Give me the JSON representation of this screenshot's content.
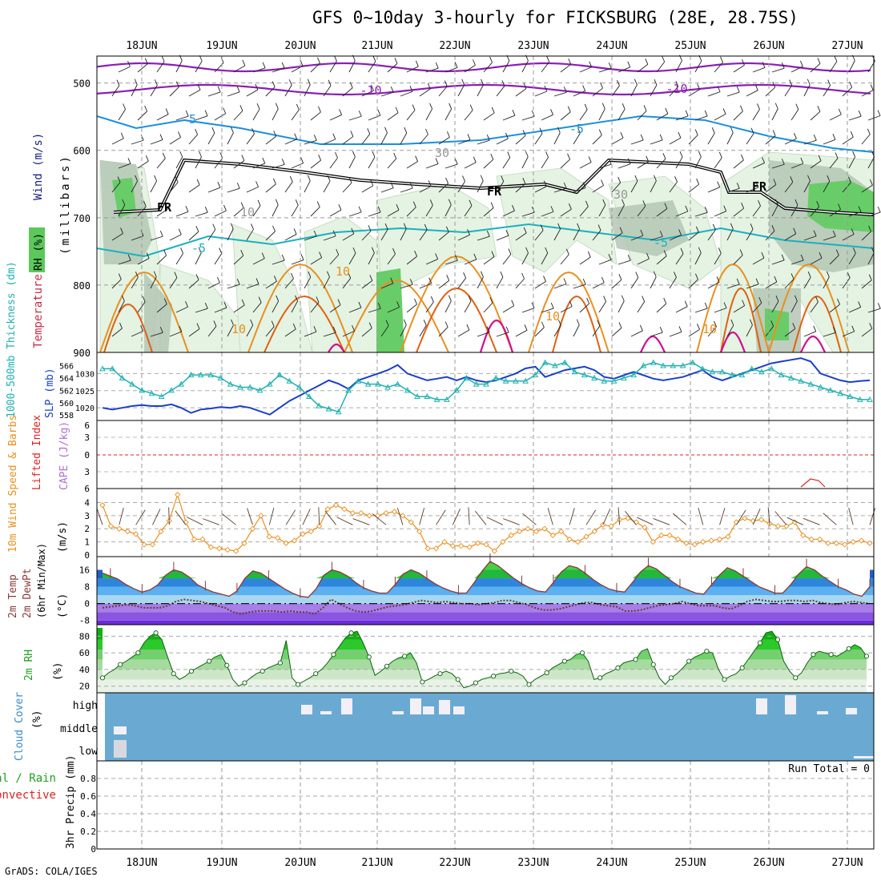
{
  "title": "GFS 0~10day 3-hourly for FICKSBURG (28E, 28.75S)",
  "credit": "GrADS: COLA/IGES",
  "colors": {
    "purple": "#8a1fb5",
    "blue": "#1a8fe0",
    "cyan": "#1ab0c0",
    "orange": "#e89020",
    "darkorange": "#e06010",
    "magenta": "#d0108a",
    "slp": "#1a3fc8",
    "thick": "#20b0b0",
    "wind": "#e89020",
    "rh": "#22bb22",
    "cloud": "#6aaad2",
    "lifted": "#e02020"
  },
  "chart_data": {
    "type": "meteogram",
    "x_dates": [
      "18JUN",
      "19JUN",
      "20JUN",
      "21JUN",
      "22JUN",
      "23JUN",
      "24JUN",
      "25JUN",
      "26JUN",
      "27JUN"
    ],
    "panels": {
      "upper": {
        "ylabel": "(millibars)",
        "left_labels": [
          "RH (%)",
          "Temperature (°C)",
          "Wind (m/s)"
        ],
        "yticks": [
          500,
          600,
          700,
          800,
          900
        ],
        "contour_labels": [
          "-10",
          "-10",
          "-5",
          "-5",
          "-5",
          "-5",
          "10",
          "10",
          "10",
          "10",
          "FR",
          "FR",
          "FR",
          "30",
          "30",
          "10"
        ]
      },
      "slp_thickness": {
        "left_labels": [
          "1000-500mb Thickness (dm)",
          "SLP (mb)"
        ],
        "thickness_ticks": [
          558,
          560,
          562,
          564,
          566
        ],
        "slp_ticks": [
          1020,
          1025,
          1030
        ],
        "slp": [
          1020,
          1019.5,
          1020,
          1020.5,
          1020.8,
          1020.5,
          1020.5,
          1021,
          1020,
          1018.5,
          1019.5,
          1019.8,
          1020.2,
          1020,
          1020.5,
          1020,
          1019,
          1018,
          1020,
          1022,
          1023.5,
          1025,
          1026.5,
          1028,
          1027,
          1025.5,
          1028,
          1029,
          1030,
          1031,
          1032.5,
          1030,
          1029,
          1028,
          1028.5,
          1029,
          1028,
          1029,
          1028,
          1027.5,
          1028,
          1029,
          1030,
          1031.5,
          1032,
          1029,
          1030,
          1031,
          1031.5,
          1032,
          1031,
          1029,
          1028.5,
          1029.5,
          1030.5,
          1029.5,
          1028.5,
          1028,
          1028.5,
          1029,
          1030,
          1031,
          1029,
          1028,
          1029,
          1030,
          1031,
          1032,
          1033,
          1033.5,
          1034,
          1034.5,
          1033.5,
          1030,
          1029,
          1028,
          1027.5,
          1027.8,
          1028
        ],
        "thickness": [
          565.5,
          565.5,
          564,
          563,
          562,
          561.5,
          561,
          562,
          563,
          564.5,
          564.5,
          564.5,
          564,
          563,
          562.5,
          562.5,
          562,
          563,
          564.5,
          563.5,
          562.5,
          561,
          559.5,
          559,
          558.5,
          562,
          563.5,
          563,
          563,
          562.5,
          563,
          562,
          561,
          561,
          560.5,
          560.5,
          562,
          564,
          563,
          563,
          564,
          563.5,
          563.5,
          563.5,
          564.5,
          566.5,
          566,
          566.5,
          565,
          564.5,
          564,
          563.5,
          563.5,
          564,
          564.5,
          566,
          566.5,
          566,
          566,
          566,
          566.5,
          565.5,
          565,
          565,
          564.5,
          564.5,
          565.5,
          565,
          565.5,
          564.5,
          564,
          563.5,
          563,
          562.5,
          562,
          561.5,
          561,
          560.5,
          560.5
        ]
      },
      "cape_li": {
        "left_labels": [
          "Lifted Index",
          "CAPE (J/kg)"
        ],
        "yticks": [
          -3,
          0,
          3,
          6
        ],
        "tick_labels": [
          "6",
          "3",
          "0",
          "3",
          "6"
        ]
      },
      "wind10m": {
        "left_labels": [
          "10m Wind Speed & Barbs",
          "(m/s)"
        ],
        "yticks": [
          0,
          1,
          2,
          3,
          4
        ],
        "speed": [
          3.8,
          2.2,
          2,
          1.8,
          1.6,
          0.8,
          0.8,
          1.8,
          2.6,
          4.6,
          2.5,
          1.2,
          1.2,
          0.6,
          0.5,
          0.4,
          0.3,
          0.9,
          2,
          3,
          1.4,
          1.3,
          0.9,
          1.1,
          1.6,
          1.8,
          2.2,
          3.5,
          3.8,
          3.5,
          3.2,
          3.2,
          3,
          3,
          3.2,
          3.3,
          3,
          2.5,
          1.8,
          0.5,
          0.5,
          1,
          0.7,
          0.7,
          0.6,
          0.9,
          0.8,
          0.3,
          1,
          1.5,
          1.8,
          2,
          1.8,
          2,
          1.5,
          1.8,
          1.2,
          1,
          1.4,
          1.8,
          2.3,
          2.2,
          2.7,
          2.8,
          2.5,
          2.1,
          1,
          1.5,
          1.5,
          1.2,
          0.9,
          0.8,
          1,
          1.1,
          1.2,
          1.4,
          2.5,
          2.8,
          2.6,
          2.7,
          2.4,
          2.2,
          2.2,
          2.5,
          1.5,
          1.2,
          1.2,
          0.9,
          0.9,
          0.8,
          1,
          1.1,
          0.9
        ]
      },
      "temp": {
        "left_labels": [
          "2m Temp",
          "2m DewPt",
          "(6hr Min/Max)",
          "(°C)"
        ],
        "yticks": [
          -8,
          0,
          8,
          16
        ],
        "tick_labels": [
          "-8",
          "0",
          "8",
          "16"
        ],
        "temp": [
          14.5,
          13,
          11.5,
          9,
          7,
          5.5,
          6.5,
          9,
          13.5,
          16,
          15,
          12.5,
          9,
          7,
          5.5,
          4.5,
          3.5,
          6,
          12,
          15.5,
          14.5,
          12,
          9.5,
          7,
          5,
          3.5,
          3,
          7,
          13.5,
          16,
          15,
          13,
          10,
          7.5,
          6,
          5,
          5,
          9,
          14,
          16,
          14.5,
          12,
          9.5,
          7.5,
          6,
          5,
          5,
          10,
          15.5,
          20,
          18,
          15,
          12,
          9.5,
          7.5,
          6,
          5.5,
          10,
          15,
          18,
          17,
          14.5,
          11.5,
          9,
          7,
          6,
          5.5,
          10,
          15,
          18,
          16.5,
          13.5,
          10.5,
          8,
          6.5,
          5,
          4.5,
          9,
          13.5,
          17,
          15.5,
          13,
          10.5,
          8,
          6.5,
          5,
          5,
          9,
          14,
          17.5,
          16,
          13,
          10.5,
          8,
          6.5,
          4.5,
          3.5,
          8
        ],
        "dewpt": [
          -2,
          -1.5,
          -1,
          -0.5,
          -1,
          -2,
          -2,
          -2,
          -1,
          1,
          2,
          1.5,
          1,
          0,
          -1,
          -2,
          -4,
          -5,
          -4,
          -3.5,
          -3.5,
          -3.5,
          -4,
          -3.5,
          -4,
          -4,
          -5,
          -2,
          2,
          0,
          -2,
          -3.5,
          -4,
          -3.5,
          -2.5,
          -1.5,
          -1,
          -0.5,
          0.5,
          1.5,
          1,
          0.5,
          1,
          0.5,
          0,
          0,
          -0.5,
          0,
          0.5,
          1.5,
          1.5,
          0.5,
          -0.5,
          -2,
          -3,
          -3,
          -2.5,
          -1.5,
          -0.5,
          0.5,
          0.5,
          -0.5,
          -1,
          -1.5,
          -3.5,
          -3.5,
          -3,
          -2,
          -1,
          -0.5,
          0,
          1,
          0,
          -1,
          -1,
          -1,
          -2,
          -2.5,
          -1,
          1,
          2,
          1.5,
          1,
          1,
          1.5,
          1.5,
          1,
          1.5,
          0.5,
          0,
          -0.5,
          0.5,
          1,
          0.5,
          0
        ]
      },
      "rh2m": {
        "left_labels": [
          "2m RH",
          "(%)"
        ],
        "yticks": [
          20,
          40,
          60,
          80
        ],
        "values": [
          30,
          36,
          40,
          46,
          50,
          55,
          60,
          72,
          80,
          84,
          76,
          55,
          35,
          28,
          32,
          38,
          42,
          46,
          50,
          55,
          58,
          45,
          28,
          20,
          24,
          30,
          35,
          38,
          42,
          45,
          48,
          75,
          30,
          22,
          26,
          30,
          35,
          40,
          48,
          58,
          68,
          78,
          84,
          86,
          72,
          55,
          33,
          38,
          44,
          50,
          54,
          56,
          60,
          48,
          25,
          28,
          32,
          35,
          38,
          35,
          28,
          18,
          20,
          24,
          28,
          30,
          32,
          35,
          36,
          38,
          36,
          32,
          22,
          28,
          32,
          36,
          42,
          46,
          50,
          52,
          58,
          60,
          50,
          28,
          30,
          35,
          38,
          42,
          48,
          50,
          52,
          62,
          65,
          46,
          30,
          22,
          30,
          35,
          42,
          50,
          55,
          58,
          62,
          60,
          40,
          28,
          32,
          35,
          42,
          52,
          62,
          72,
          84,
          86,
          76,
          50,
          38,
          30,
          36,
          48,
          58,
          62,
          60,
          58,
          56,
          60,
          65,
          70,
          66,
          56
        ]
      },
      "cloud": {
        "left_labels": [
          "Cloud Cover",
          "(%)"
        ],
        "level_labels": [
          "high",
          "middle",
          "low"
        ]
      },
      "precip": {
        "left_labels": [
          "Total / Rain",
          "Convective"
        ],
        "ylabel": "3hr Precip (mm)",
        "yticks": [
          0,
          0.2,
          0.4,
          0.6,
          0.8
        ],
        "tick_labels": [
          "0",
          "0.2",
          "0.4",
          "0.6",
          "0.8"
        ],
        "run_total": "Run Total = 0",
        "values": []
      }
    }
  }
}
